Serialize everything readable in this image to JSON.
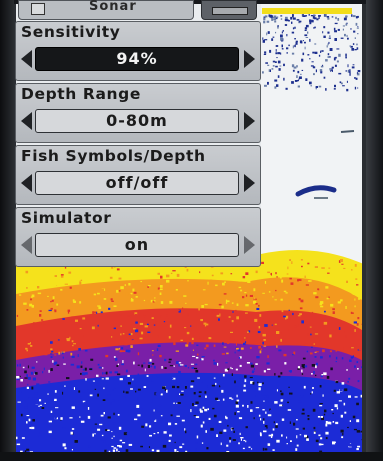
{
  "colors": {
    "menu_background": "#c4c7cb",
    "selected_value_background": "#151719",
    "sonar_strong": "#f5e21c",
    "sonar_mid": "#e2372a",
    "sonar_low": "#1c2bd6",
    "sonar_noise": "#ffffff",
    "screen_background": "#e9ecef"
  },
  "top_tabs": {
    "first_tab_icon": "checkbox-icon",
    "first_tab_text": "Sonar",
    "second_tab_icon": "menu-bar-icon"
  },
  "menu": {
    "items": [
      {
        "label": "Sensitivity",
        "value": "94%",
        "selected": true,
        "left_icon": "arrow-left-icon",
        "right_icon": "arrow-right-icon"
      },
      {
        "label": "Depth Range",
        "value": "0-80m",
        "selected": false,
        "left_icon": "arrow-left-icon",
        "right_icon": "arrow-right-icon"
      },
      {
        "label": "Fish Symbols/Depth",
        "value": "off/off",
        "selected": false,
        "left_icon": "arrow-left-icon",
        "right_icon": "arrow-right-icon"
      },
      {
        "label": "Simulator",
        "value": "on",
        "selected": false,
        "left_icon": "arrow-left-icon",
        "right_icon": "arrow-right-icon"
      }
    ]
  }
}
